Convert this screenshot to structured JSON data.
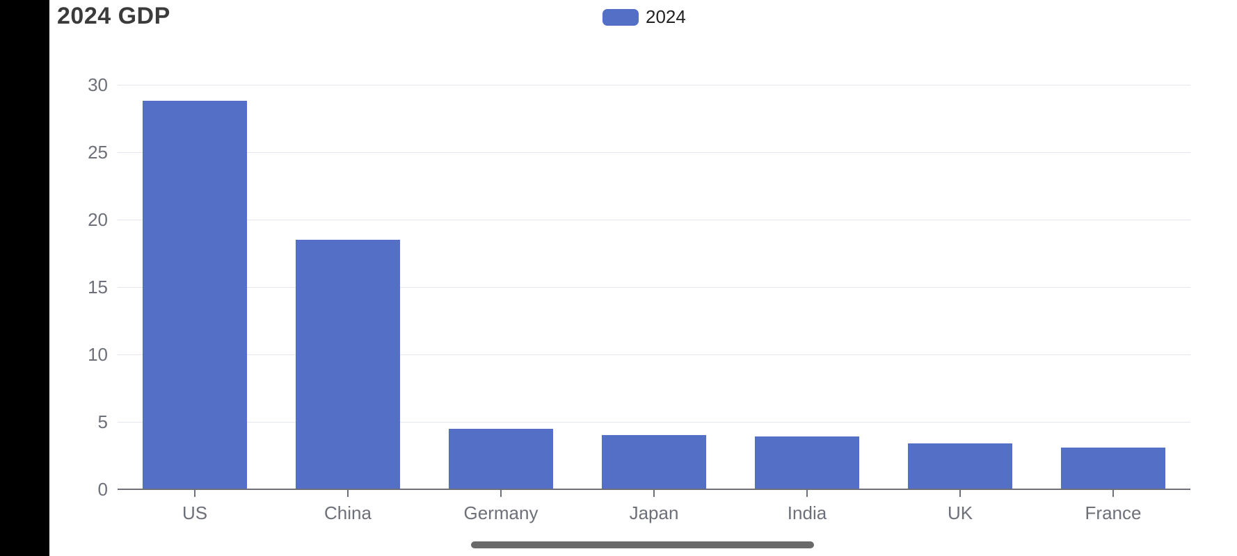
{
  "header": {
    "title": "2024 GDP"
  },
  "legend": {
    "items": [
      {
        "label": "2024",
        "color": "#5470c6"
      }
    ],
    "position": "top-center"
  },
  "chart_data": {
    "type": "bar",
    "title": "2024 GDP",
    "categories": [
      "US",
      "China",
      "Germany",
      "Japan",
      "India",
      "UK",
      "France"
    ],
    "series": [
      {
        "name": "2024",
        "color": "#5470c6",
        "values": [
          28.8,
          18.5,
          4.5,
          4.0,
          3.9,
          3.4,
          3.1
        ]
      }
    ],
    "xlabel": "",
    "ylabel": "",
    "ylim": [
      0,
      30
    ],
    "yticks": [
      0,
      5,
      10,
      15,
      20,
      25,
      30
    ],
    "grid": true,
    "legend_position": "top-center"
  },
  "colors": {
    "accent": "#5470c6",
    "gridline": "#e2e6f0",
    "axis_line": "#6e7079",
    "tick_label": "#6e7079",
    "title_text": "#3b3b3b",
    "legend_text": "#222222",
    "scrollbar": "#6a6a6a",
    "letterbox": "#000000",
    "background": "#ffffff"
  },
  "scrollbar": {
    "orientation": "horizontal"
  }
}
